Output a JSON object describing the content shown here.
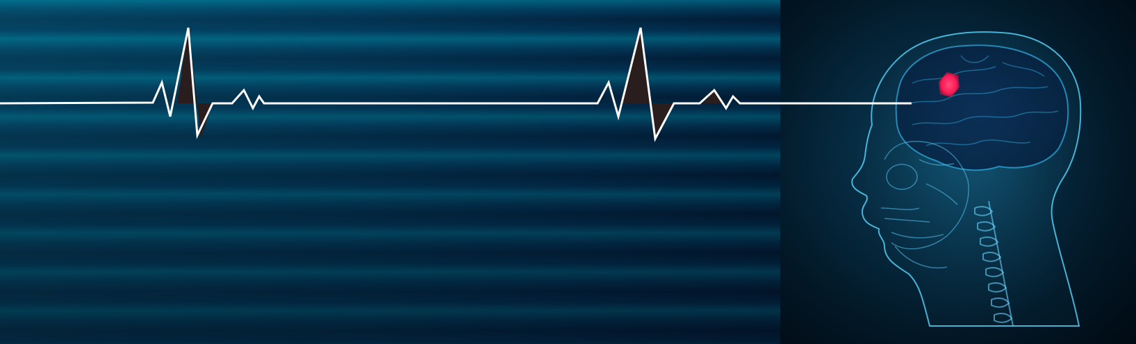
{
  "scene": {
    "description_free": true,
    "colors": {
      "background_stripes_light": "#0a8aa8",
      "background_stripes_dark": "#021a33",
      "ecg_line": "#ffffff",
      "ecg_fill": "#2a1d1d",
      "head_glow": "#4fd4ff",
      "brain_highlight": "#ff1a55"
    },
    "icons": {
      "heartbeat": "ecg-heartbeat-line",
      "head": "xray-head-skull-brain-illustration"
    }
  }
}
